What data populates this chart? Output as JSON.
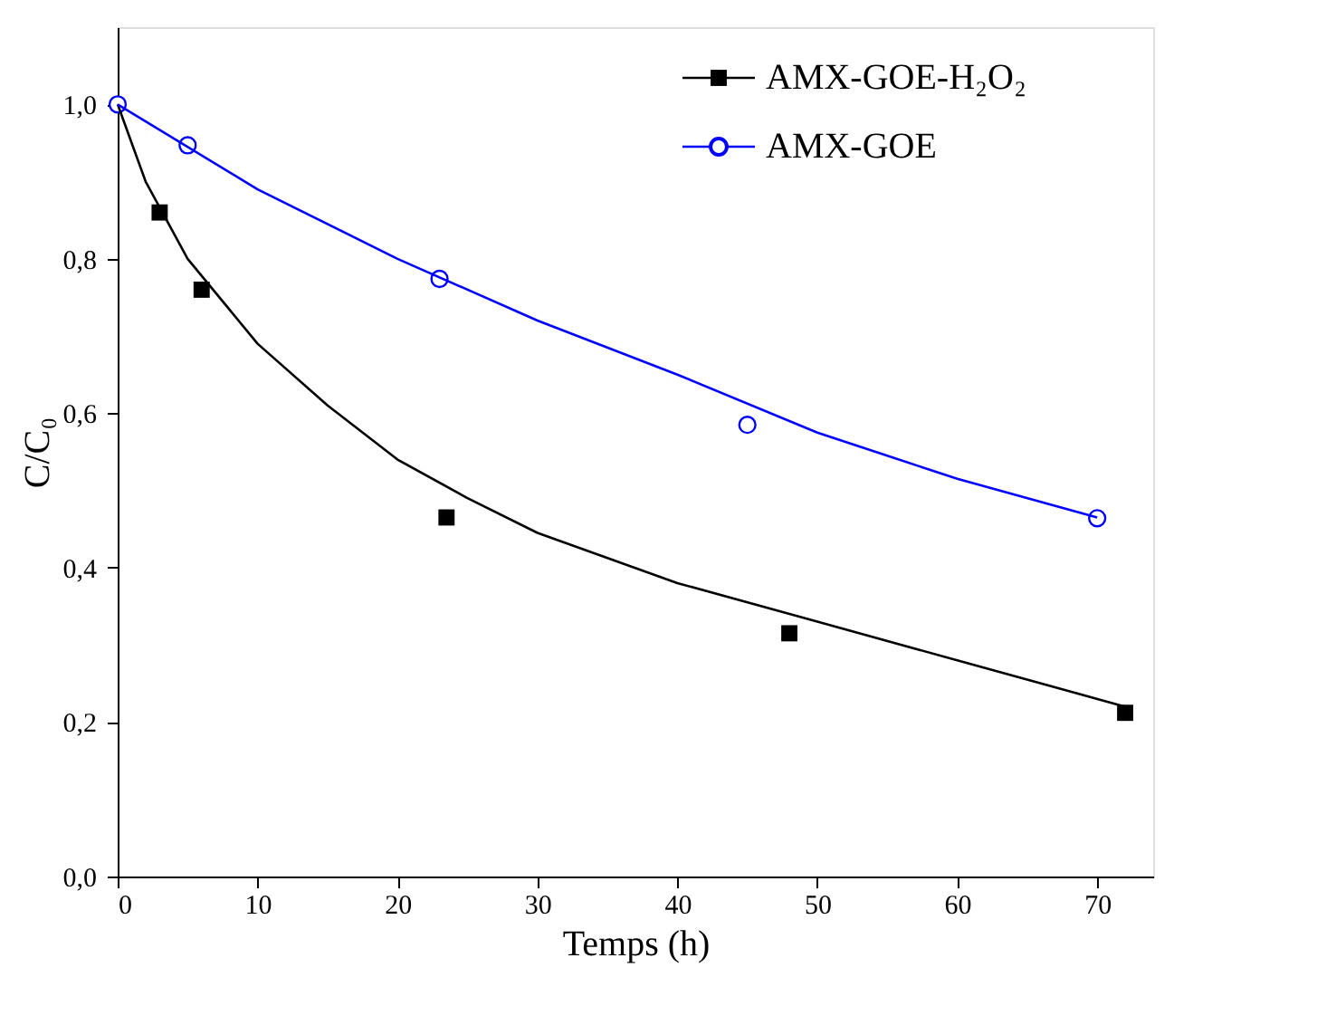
{
  "chart_data": {
    "type": "scatter",
    "xlabel": "Temps (h)",
    "ylabel": "C/C₀",
    "xlim": [
      0,
      74
    ],
    "ylim": [
      0,
      1.1
    ],
    "xticks": [
      0,
      10,
      20,
      30,
      40,
      50,
      60,
      70
    ],
    "yticks": [
      {
        "value": 0,
        "label": "0,0"
      },
      {
        "value": 0.2,
        "label": "0,2"
      },
      {
        "value": 0.4,
        "label": "0,4"
      },
      {
        "value": 0.6,
        "label": "0,6"
      },
      {
        "value": 0.8,
        "label": "0,8"
      },
      {
        "value": 1.0,
        "label": "1,0"
      }
    ],
    "grid": false,
    "legend": "top right",
    "series": [
      {
        "name": "AMX-GOE-H₂O₂",
        "marker": "square",
        "color": "#000000",
        "x": [
          3,
          6,
          23.5,
          48,
          72
        ],
        "values": [
          0.86,
          0.76,
          0.465,
          0.315,
          0.212
        ]
      },
      {
        "name": "AMX-GOE",
        "marker": "circle",
        "color": "#0000ff",
        "x": [
          0,
          5,
          23,
          45,
          70
        ],
        "values": [
          1.0,
          0.947,
          0.774,
          0.585,
          0.464
        ]
      },
      {
        "type": "line",
        "marker": "none",
        "color": "#000000",
        "x": [
          0,
          2,
          5,
          10,
          15,
          20,
          25,
          30,
          40,
          50,
          60,
          72
        ],
        "values": [
          1.0,
          0.9,
          0.8,
          0.69,
          0.61,
          0.54,
          0.49,
          0.445,
          0.38,
          0.33,
          0.28,
          0.22
        ]
      },
      {
        "type": "line",
        "marker": "none",
        "color": "#0000ff",
        "x": [
          0,
          10,
          20,
          30,
          40,
          50,
          60,
          70
        ],
        "values": [
          1.0,
          0.89,
          0.8,
          0.72,
          0.65,
          0.575,
          0.515,
          0.465
        ]
      }
    ]
  }
}
